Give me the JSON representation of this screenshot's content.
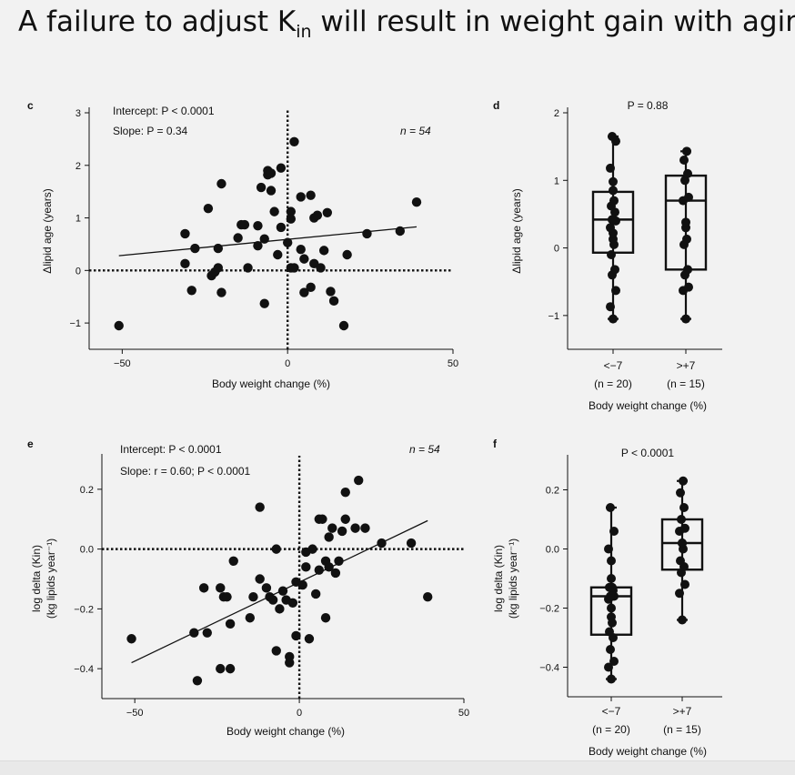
{
  "title": {
    "before": "A failure to adjust K",
    "sub": "in",
    "after": " will result in weight gain with aging"
  },
  "colors": {
    "background": "#f2f2f2",
    "ink": "#111111"
  },
  "panels": {
    "c": {
      "letter": "c",
      "annot1": "Intercept: P < 0.0001",
      "annot2": "Slope: P = 0.34",
      "n": "n = 54",
      "ylabel": "Δlipid age (years)",
      "xlabel": "Body weight change (%)",
      "xticks": [
        "−50",
        "0",
        "50"
      ],
      "yticks": [
        "−1",
        "0",
        "1",
        "2",
        "3"
      ]
    },
    "d": {
      "letter": "d",
      "pval": "P = 0.88",
      "ylabel": "Δlipid age (years)",
      "xlabel": "Body weight change (%)",
      "cat1": "<−7",
      "cat1n": "(n = 20)",
      "cat2": ">+7",
      "cat2n": "(n = 15)",
      "yticks": [
        "−1",
        "0",
        "1",
        "2"
      ]
    },
    "e": {
      "letter": "e",
      "annot1": "Intercept: P < 0.0001",
      "annot2": "Slope: r = 0.60; P < 0.0001",
      "n": "n = 54",
      "ylabel1": "log delta (Kin)",
      "ylabel2": "(kg lipids year⁻¹)",
      "xlabel": "Body weight change (%)",
      "xticks": [
        "−50",
        "0",
        "50"
      ],
      "yticks": [
        "−0.4",
        "−0.2",
        "0.0",
        "0.2"
      ]
    },
    "f": {
      "letter": "f",
      "pval": "P < 0.0001",
      "ylabel1": "log delta (Kin)",
      "ylabel2": "(kg lipids year⁻¹)",
      "xlabel": "Body weight change (%)",
      "cat1": "<−7",
      "cat1n": "(n = 20)",
      "cat2": ">+7",
      "cat2n": "(n = 15)",
      "yticks": [
        "−0.4",
        "−0.2",
        "0.0",
        "0.2"
      ]
    }
  },
  "chart_data": [
    {
      "panel": "c",
      "type": "scatter",
      "xlim": [
        -60,
        50
      ],
      "ylim": [
        -1.5,
        3
      ],
      "regression": {
        "x": [
          -51,
          39
        ],
        "y": [
          0.28,
          0.83
        ]
      },
      "points": [
        [
          -51,
          -1.05
        ],
        [
          -31,
          0.7
        ],
        [
          -31,
          0.13
        ],
        [
          -29,
          -0.38
        ],
        [
          -28,
          0.42
        ],
        [
          -24,
          1.18
        ],
        [
          -23,
          -0.1
        ],
        [
          -22,
          -0.03
        ],
        [
          -21,
          0.05
        ],
        [
          -21,
          0.42
        ],
        [
          -20,
          -0.42
        ],
        [
          -20,
          1.65
        ],
        [
          -15,
          0.62
        ],
        [
          -14,
          0.87
        ],
        [
          -13,
          0.87
        ],
        [
          -12,
          0.05
        ],
        [
          -9,
          0.47
        ],
        [
          -9,
          0.85
        ],
        [
          -8,
          1.58
        ],
        [
          -7,
          -0.63
        ],
        [
          -7,
          0.6
        ],
        [
          -6,
          1.82
        ],
        [
          -6,
          1.9
        ],
        [
          -5,
          1.52
        ],
        [
          -5,
          1.85
        ],
        [
          -4,
          1.12
        ],
        [
          -3,
          0.3
        ],
        [
          -2,
          1.95
        ],
        [
          -2,
          0.82
        ],
        [
          0,
          0.53
        ],
        [
          1,
          1.12
        ],
        [
          1,
          0.98
        ],
        [
          1,
          0.05
        ],
        [
          2,
          0.05
        ],
        [
          2,
          2.45
        ],
        [
          4,
          1.4
        ],
        [
          4,
          0.4
        ],
        [
          5,
          -0.42
        ],
        [
          5,
          0.22
        ],
        [
          7,
          1.43
        ],
        [
          7,
          -0.32
        ],
        [
          8,
          0.13
        ],
        [
          8,
          1.0
        ],
        [
          9,
          1.05
        ],
        [
          10,
          0.05
        ],
        [
          11,
          0.38
        ],
        [
          12,
          1.1
        ],
        [
          13,
          -0.4
        ],
        [
          14,
          -0.58
        ],
        [
          17,
          -1.05
        ],
        [
          18,
          0.3
        ],
        [
          24,
          0.7
        ],
        [
          34,
          0.75
        ],
        [
          39,
          1.3
        ]
      ]
    },
    {
      "panel": "d",
      "type": "box",
      "ylim": [
        -1.5,
        2
      ],
      "groups": [
        {
          "label": "<−7",
          "n": 20,
          "min": -1.05,
          "q1": -0.07,
          "median": 0.42,
          "q3": 0.83,
          "max": 1.65,
          "points": [
            -1.05,
            -0.87,
            -0.63,
            -0.4,
            -0.32,
            -0.1,
            0.05,
            0.13,
            0.22,
            0.3,
            0.4,
            0.42,
            0.53,
            0.62,
            0.7,
            0.85,
            0.98,
            1.18,
            1.58,
            1.65
          ]
        },
        {
          "label": ">+7",
          "n": 15,
          "min": -1.05,
          "q1": -0.32,
          "median": 0.7,
          "q3": 1.07,
          "max": 1.43,
          "points": [
            -1.05,
            -0.63,
            -0.58,
            -0.4,
            -0.32,
            0.05,
            0.13,
            0.3,
            0.38,
            0.7,
            0.75,
            1.0,
            1.1,
            1.3,
            1.43
          ]
        }
      ]
    },
    {
      "panel": "e",
      "type": "scatter",
      "xlim": [
        -60,
        50
      ],
      "ylim": [
        -0.5,
        0.3
      ],
      "regression": {
        "x": [
          -51,
          39
        ],
        "y": [
          -0.38,
          0.095
        ]
      },
      "points": [
        [
          -51,
          -0.3
        ],
        [
          -32,
          -0.28
        ],
        [
          -31,
          -0.44
        ],
        [
          -29,
          -0.13
        ],
        [
          -28,
          -0.28
        ],
        [
          -24,
          -0.13
        ],
        [
          -24,
          -0.4
        ],
        [
          -23,
          -0.16
        ],
        [
          -22,
          -0.16
        ],
        [
          -21,
          -0.4
        ],
        [
          -21,
          -0.25
        ],
        [
          -20,
          -0.04
        ],
        [
          -15,
          -0.23
        ],
        [
          -14,
          -0.16
        ],
        [
          -12,
          0.14
        ],
        [
          -12,
          -0.1
        ],
        [
          -10,
          -0.13
        ],
        [
          -9,
          -0.16
        ],
        [
          -8,
          -0.17
        ],
        [
          -7,
          -0.34
        ],
        [
          -7,
          0.0
        ],
        [
          -6,
          -0.2
        ],
        [
          -5,
          -0.14
        ],
        [
          -4,
          -0.17
        ],
        [
          -3,
          -0.38
        ],
        [
          -3,
          -0.36
        ],
        [
          -2,
          -0.18
        ],
        [
          -1,
          -0.11
        ],
        [
          -1,
          -0.29
        ],
        [
          1,
          -0.12
        ],
        [
          2,
          -0.06
        ],
        [
          2,
          -0.01
        ],
        [
          3,
          -0.3
        ],
        [
          4,
          0.0
        ],
        [
          5,
          -0.15
        ],
        [
          6,
          -0.07
        ],
        [
          6,
          0.1
        ],
        [
          7,
          0.1
        ],
        [
          8,
          -0.04
        ],
        [
          8,
          -0.23
        ],
        [
          9,
          -0.06
        ],
        [
          10,
          0.07
        ],
        [
          11,
          -0.08
        ],
        [
          12,
          -0.04
        ],
        [
          13,
          0.06
        ],
        [
          14,
          0.19
        ],
        [
          14,
          0.1
        ],
        [
          17,
          0.07
        ],
        [
          18,
          0.23
        ],
        [
          20,
          0.07
        ],
        [
          25,
          0.02
        ],
        [
          34,
          0.02
        ],
        [
          39,
          -0.16
        ],
        [
          9,
          0.04
        ]
      ]
    },
    {
      "panel": "f",
      "type": "box",
      "ylim": [
        -0.5,
        0.3
      ],
      "groups": [
        {
          "label": "<−7",
          "n": 20,
          "min": -0.44,
          "q1": -0.29,
          "median": -0.16,
          "q3": -0.13,
          "max": 0.14,
          "points": [
            -0.44,
            -0.4,
            -0.38,
            -0.34,
            -0.3,
            -0.28,
            -0.25,
            -0.23,
            -0.2,
            -0.17,
            -0.16,
            -0.16,
            -0.14,
            -0.13,
            -0.13,
            -0.1,
            -0.04,
            0.0,
            0.06,
            0.14
          ]
        },
        {
          "label": ">+7",
          "n": 15,
          "min": -0.24,
          "q1": -0.07,
          "median": 0.02,
          "q3": 0.1,
          "max": 0.23,
          "points": [
            -0.24,
            -0.15,
            -0.12,
            -0.08,
            -0.06,
            -0.04,
            0.0,
            0.02,
            0.02,
            0.06,
            0.07,
            0.1,
            0.14,
            0.19,
            0.23
          ]
        }
      ]
    }
  ]
}
